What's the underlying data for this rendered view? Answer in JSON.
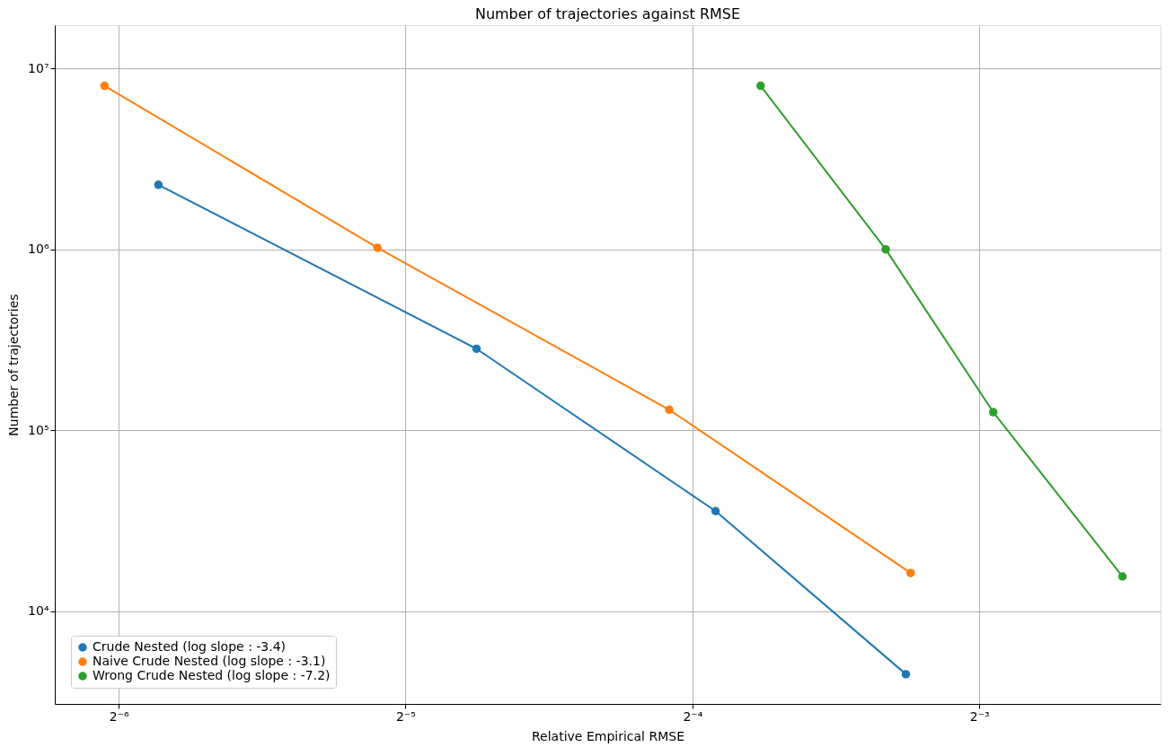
{
  "chart_data": {
    "type": "line",
    "title": "Number of trajectories against RMSE",
    "xlabel": "Relative Empirical RMSE",
    "ylabel": "Number of trajectories",
    "log": "xy",
    "grid": true,
    "legend": "bottom left",
    "marker": "circle",
    "line_style": "solid",
    "xlim": [
      0.01339,
      0.1937
    ],
    "ylim": [
      3083,
      17300000
    ],
    "xticks": [
      {
        "value": 0.015625,
        "label": "2⁻⁶"
      },
      {
        "value": 0.03125,
        "label": "2⁻⁵"
      },
      {
        "value": 0.0625,
        "label": "2⁻⁴"
      },
      {
        "value": 0.125,
        "label": "2⁻³"
      }
    ],
    "yticks": [
      {
        "value": 10000,
        "label": "10⁴"
      },
      {
        "value": 100000,
        "label": "10⁵"
      },
      {
        "value": 1000000,
        "label": "10⁶"
      },
      {
        "value": 10000000,
        "label": "10⁷"
      }
    ],
    "series": [
      {
        "name": "Crude Nested (log slope : -3.4)",
        "color": "#1f77b4",
        "x": [
          0.0172,
          0.0371,
          0.0661,
          0.1047
        ],
        "values": [
          2270000,
          282000,
          35800,
          4500
        ]
      },
      {
        "name": "Naive Crude Nested (log slope : -3.1)",
        "color": "#ff7f0e",
        "x": [
          0.0151,
          0.0292,
          0.0591,
          0.1059
        ],
        "values": [
          8000000,
          1020000,
          130000,
          16300
        ]
      },
      {
        "name": "Wrong Crude Nested (log slope : -7.2)",
        "color": "#2ca02c",
        "x": [
          0.0737,
          0.0997,
          0.1293,
          0.1767
        ],
        "values": [
          8000000,
          1000000,
          126000,
          15600
        ]
      }
    ]
  }
}
